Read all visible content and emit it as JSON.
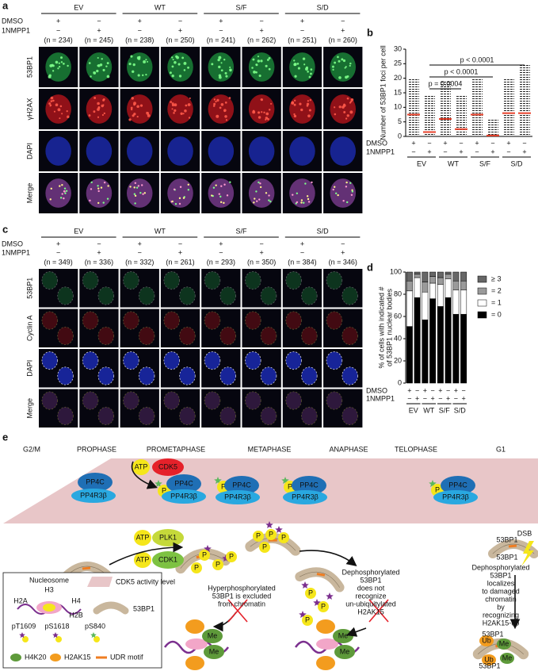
{
  "panel_labels": [
    "a",
    "b",
    "c",
    "d",
    "e"
  ],
  "panel_a": {
    "groups": [
      "EV",
      "WT",
      "S/F",
      "S/D"
    ],
    "treatments": [
      {
        "name": "DMSO",
        "signs": [
          "+",
          "−",
          "+",
          "−",
          "+",
          "−",
          "+",
          "−"
        ]
      },
      {
        "name": "1NMPP1",
        "signs": [
          "−",
          "+",
          "−",
          "+",
          "−",
          "+",
          "−",
          "+"
        ]
      }
    ],
    "n_labels": [
      "(n = 234)",
      "(n = 245)",
      "(n = 238)",
      "(n = 250)",
      "(n = 241)",
      "(n = 262)",
      "(n = 251)",
      "(n = 260)"
    ],
    "rows": [
      "53BP1",
      "γH2AX",
      "DAPI",
      "Merge"
    ]
  },
  "panel_c": {
    "groups": [
      "EV",
      "WT",
      "S/F",
      "S/D"
    ],
    "treatments": [
      {
        "name": "DMSO",
        "signs": [
          "+",
          "−",
          "+",
          "−",
          "+",
          "−",
          "+",
          "−"
        ]
      },
      {
        "name": "1NMPP1",
        "signs": [
          "−",
          "+",
          "−",
          "+",
          "−",
          "+",
          "−",
          "+"
        ]
      }
    ],
    "n_labels": [
      "(n = 349)",
      "(n = 336)",
      "(n = 332)",
      "(n = 261)",
      "(n = 293)",
      "(n = 350)",
      "(n = 384)",
      "(n = 346)"
    ],
    "rows": [
      "53BP1",
      "Cyclin A",
      "DAPI",
      "Merge"
    ]
  },
  "chart_data": [
    {
      "type": "dot",
      "ylabel": "Number of 53BP1 foci per cell",
      "values": [
        7.5,
        1.5,
        6,
        2.5,
        7.5,
        0.3,
        8,
        8
      ],
      "maxima": [
        20,
        14,
        19,
        14,
        20,
        6,
        20,
        25
      ],
      "color": "#222222",
      "mean_color": "#e8412b",
      "ylim": [
        0,
        30
      ],
      "yticks": [
        0,
        5,
        10,
        15,
        20,
        25,
        30
      ],
      "groups": [
        "EV",
        "WT",
        "S/F",
        "S/D"
      ],
      "treatments": [
        {
          "name": "DMSO",
          "signs": [
            "+",
            "−",
            "+",
            "−",
            "+",
            "−",
            "+",
            "−"
          ]
        },
        {
          "name": "1NMPP1",
          "signs": [
            "−",
            "+",
            "−",
            "+",
            "−",
            "+",
            "−",
            "+"
          ]
        }
      ],
      "annotations": [
        "p < 0.0001",
        "p < 0.0001",
        "p = 0.0004"
      ]
    },
    {
      "type": "stacked_bar",
      "ylabel": [
        "% of cells with indicated #",
        "of 53BP1 nuclear bodies"
      ],
      "series": [
        {
          "name": "= 0",
          "color": "#000000",
          "values": [
            51,
            77,
            57,
            76,
            69,
            77,
            62,
            62
          ]
        },
        {
          "name": "= 1",
          "color": "#ffffff",
          "values": [
            32,
            18,
            25,
            14,
            20,
            17,
            22,
            22
          ]
        },
        {
          "name": "= 2",
          "color": "#9a9a9a",
          "values": [
            9,
            3,
            9,
            6,
            6,
            4,
            8,
            8
          ]
        },
        {
          "name": "≥ 3",
          "color": "#666666",
          "values": [
            8,
            2,
            9,
            4,
            5,
            2,
            8,
            8
          ]
        }
      ],
      "ylim": [
        0,
        100
      ],
      "yticks": [
        0,
        20,
        40,
        60,
        80,
        100
      ],
      "groups": [
        "EV",
        "WT",
        "S/F",
        "S/D"
      ],
      "treatments": [
        {
          "name": "DMSO",
          "signs": [
            "+",
            "−",
            "+",
            "−",
            "+",
            "−",
            "+",
            "−"
          ]
        },
        {
          "name": "1NMPP1",
          "signs": [
            "−",
            "+",
            "−",
            "+",
            "−",
            "+",
            "−",
            "+"
          ]
        }
      ]
    }
  ],
  "panel_e": {
    "phases": [
      "G2/M",
      "PROPHASE",
      "PROMETAPHASE",
      "METAPHASE",
      "ANAPHASE",
      "TELOPHASE",
      "G1"
    ],
    "molecules": [
      "ATP",
      "CDK5",
      "PP4C",
      "PP4R3β",
      "P",
      "PP4C",
      "PP4R3β",
      "P",
      "PP4C",
      "PP4R3β",
      "P",
      "PP4C",
      "PP4R3β",
      "P",
      "PP4C",
      "PP4R3β",
      "ATP",
      "PLK1",
      "ATP",
      "CDK1",
      "P",
      "P",
      "P",
      "P",
      "P",
      "P",
      "P",
      "P",
      "P",
      "P",
      "P",
      "Me",
      "Me",
      "Me",
      "Me",
      "Ub",
      "Me",
      "Me",
      "Ub"
    ],
    "captions": [
      [
        "Hyperphosphorylated",
        "53BP1 is excluded",
        "from chromatin"
      ],
      [
        "Dephosphorylated",
        "53BP1",
        "does not",
        "recognize",
        "un-ubiquitylated",
        "H2AK15"
      ],
      [
        "Dephosphorylated",
        "53BP1",
        "localizes",
        "to damaged",
        "chromatin",
        "by",
        "recognizing",
        "H2AK15-ub"
      ]
    ],
    "dsb": "DSB",
    "chromatin_labels": [
      "53BP1",
      "53BP1",
      "53BP1",
      "53BP1"
    ],
    "legend": {
      "title": "Nucleosome",
      "histones": [
        "H3",
        "H2A",
        "H4",
        "H2B"
      ],
      "cdk5": "CDK5 activity level",
      "protein": "53BP1",
      "sites": [
        "pT1609",
        "pS1618",
        "pS840"
      ],
      "marks": [
        "H4K20",
        "H2AK15",
        "UDR motif"
      ]
    }
  }
}
